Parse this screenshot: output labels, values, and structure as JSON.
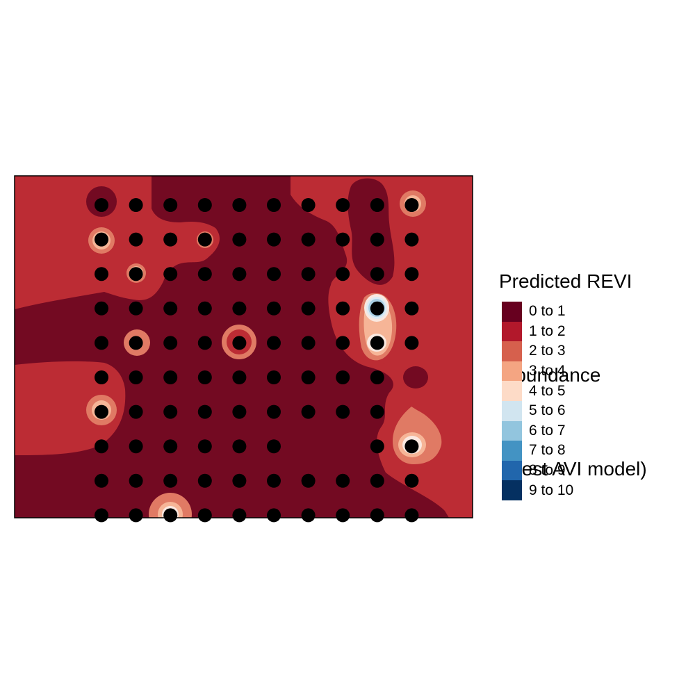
{
  "legend": {
    "title_lines": [
      "Predicted REVI",
      " abundance",
      " (best AVI model)"
    ],
    "classes": [
      {
        "label": "0 to 1",
        "color": "#67001F"
      },
      {
        "label": "1 to 2",
        "color": "#B2182B"
      },
      {
        "label": "2 to 3",
        "color": "#D6604D"
      },
      {
        "label": "3 to 4",
        "color": "#F4A582"
      },
      {
        "label": "4 to 5",
        "color": "#FDDBC7"
      },
      {
        "label": "5 to 6",
        "color": "#D1E5F0"
      },
      {
        "label": "6 to 7",
        "color": "#92C5DE"
      },
      {
        "label": "7 to 8",
        "color": "#4393C3"
      },
      {
        "label": "8 to 9",
        "color": "#2166AC"
      },
      {
        "label": "9 to 10",
        "color": "#053061"
      }
    ]
  },
  "map_colors": {
    "class_0_1": "#730A22",
    "class_1_2": "#BC2C34",
    "class_2_3": "#E07A64",
    "class_3_4": "#F6B597",
    "class_4_5": "#FAE8E0",
    "class_5_6": "#DDEBF3",
    "class_6_7": "#A9D0E5",
    "frame": "#000000",
    "point": "#000000"
  },
  "chart_data": {
    "type": "heatmap",
    "title": "",
    "legend_title": "Predicted REVI abundance (best AVI model)",
    "legend_position": "right",
    "grid": false,
    "classes": [
      "0 to 1",
      "1 to 2",
      "2 to 3",
      "3 to 4",
      "4 to 5",
      "5 to 6",
      "6 to 7",
      "7 to 8",
      "8 to 9",
      "9 to 10"
    ],
    "point_grid": {
      "rows": 10,
      "columns": 10,
      "missing_points": [
        [
          5,
          9
        ],
        [
          6,
          9
        ],
        [
          7,
          6
        ],
        [
          7,
          7
        ]
      ]
    }
  }
}
